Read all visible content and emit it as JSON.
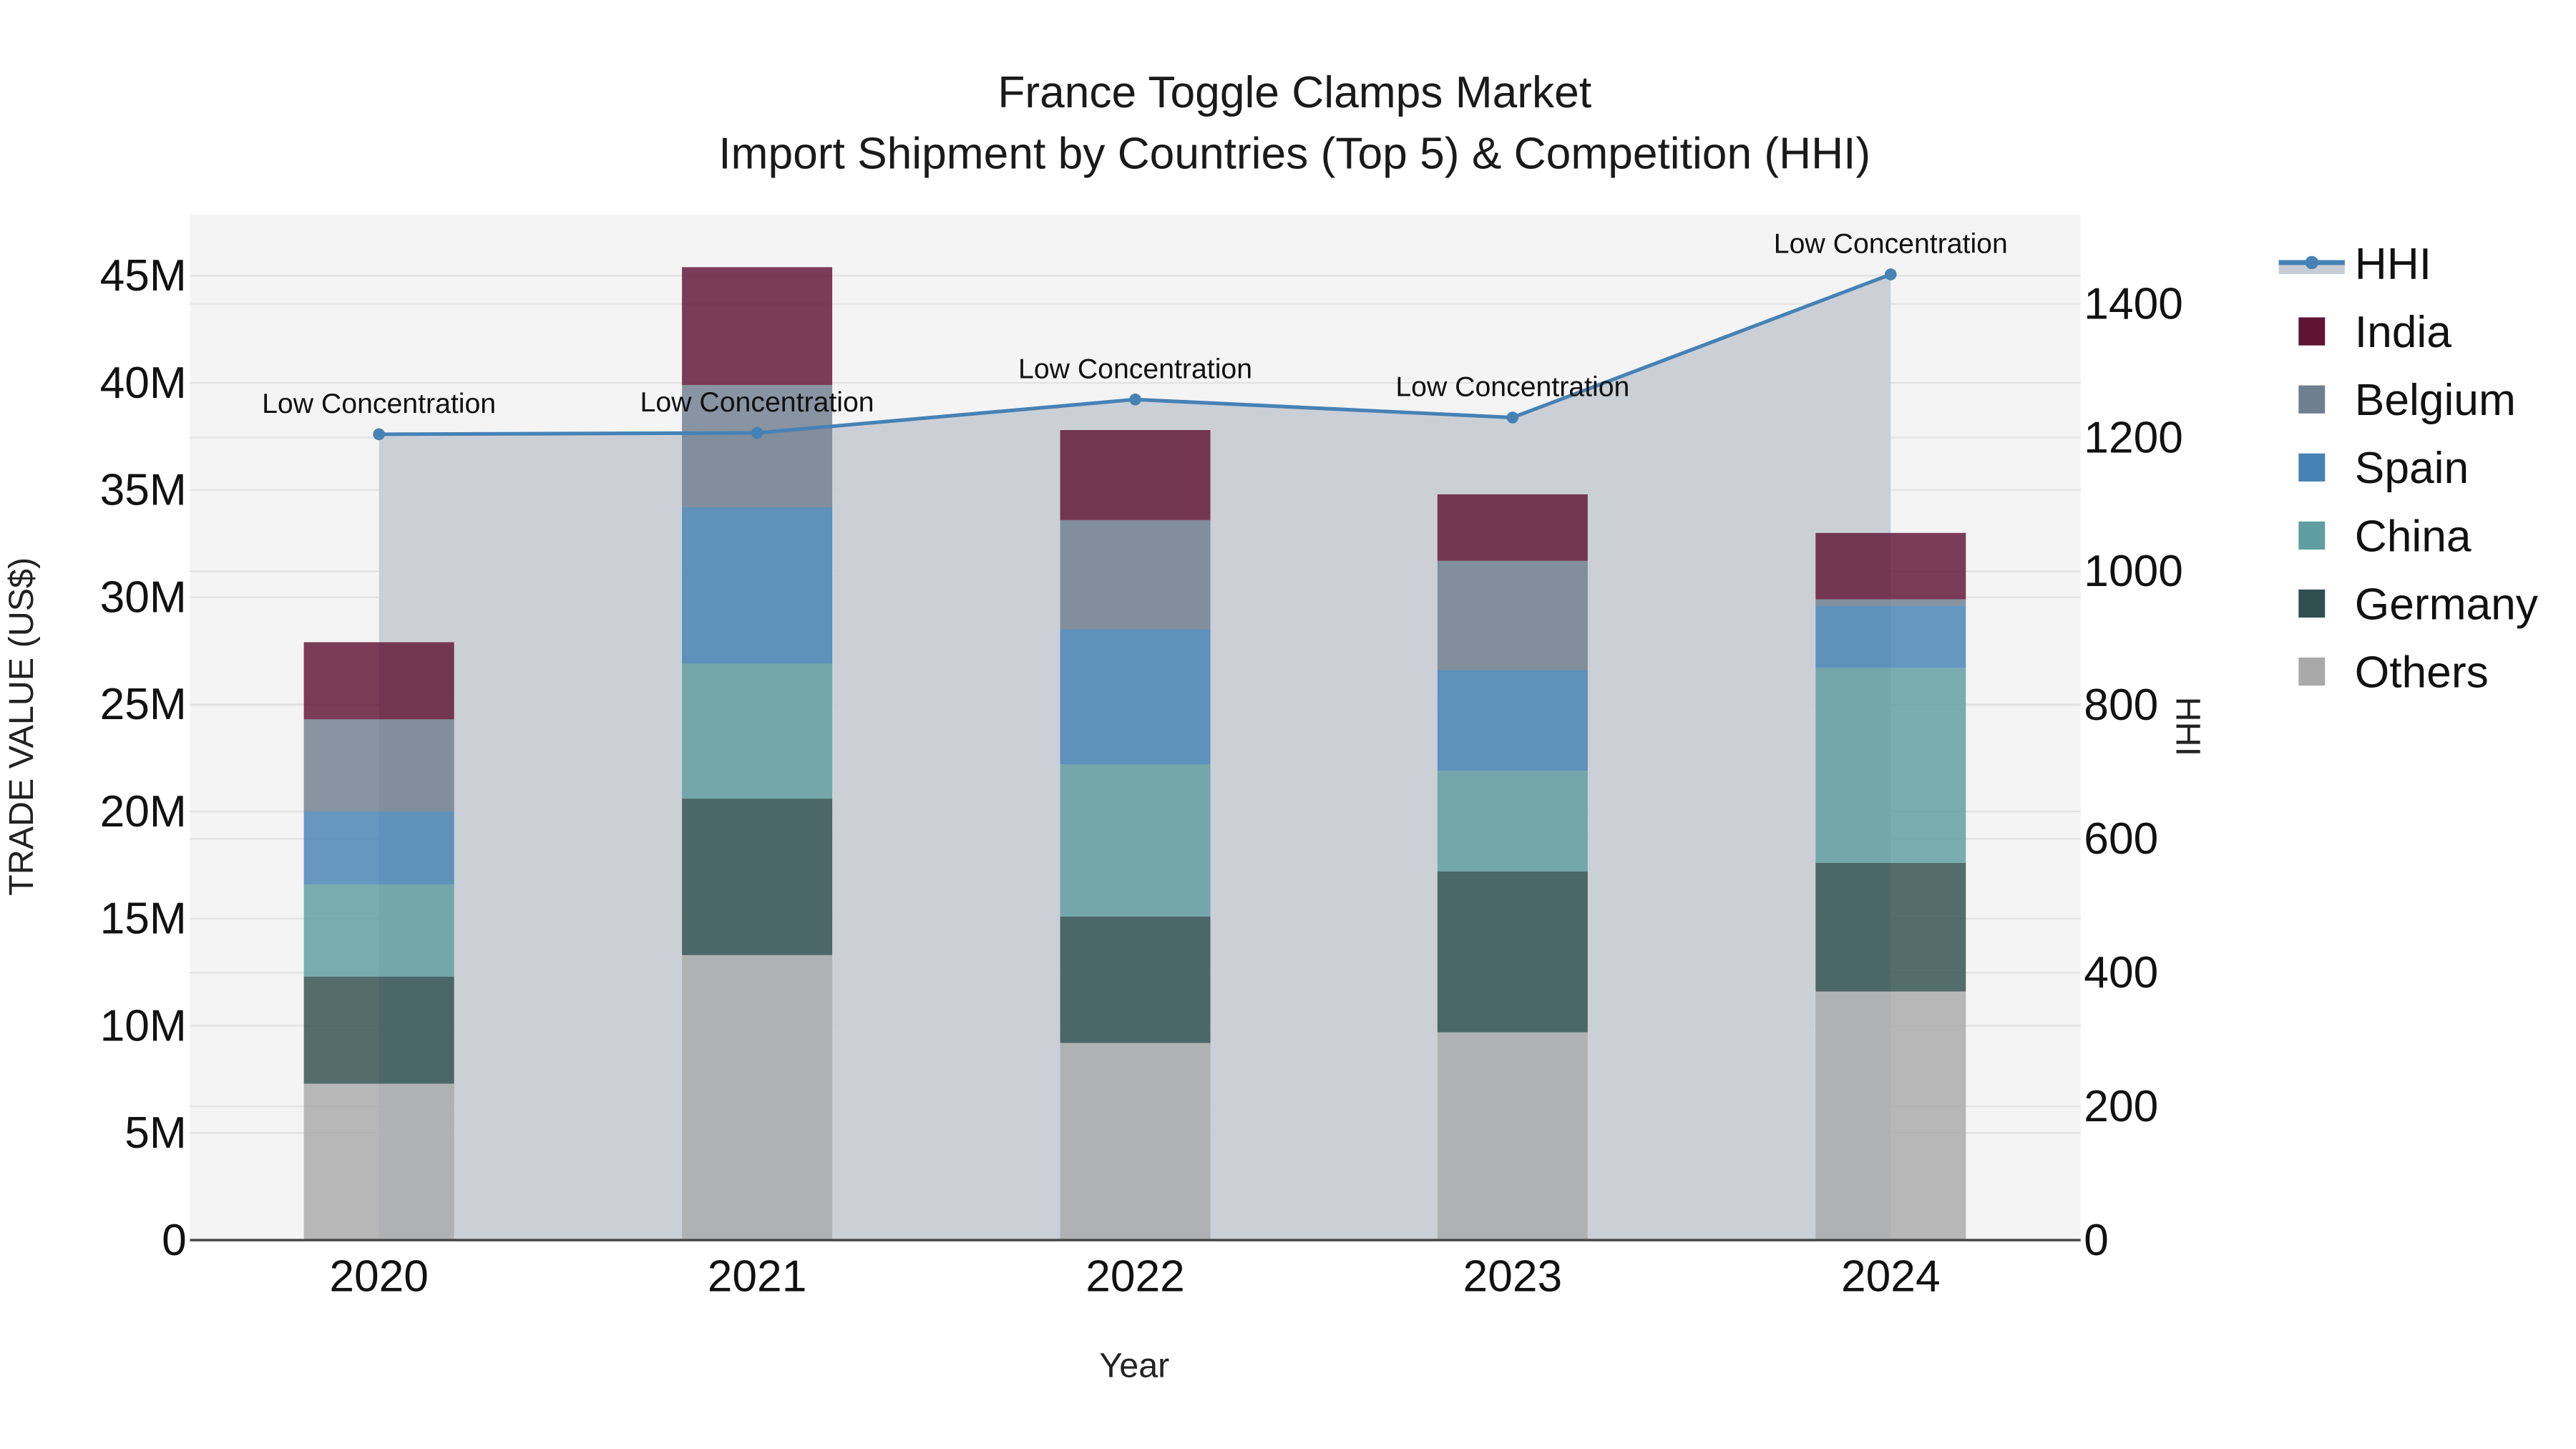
{
  "title": {
    "line1": "France Toggle Clamps Market",
    "line2": "Import Shipment by Countries (Top 5) & Competition (HHI)"
  },
  "axes": {
    "x_title": "Year",
    "y_left_title": "TRADE VALUE (US$)",
    "y_right_title": "HHI",
    "y_left_ticks": [
      "0",
      "5M",
      "10M",
      "15M",
      "20M",
      "25M",
      "30M",
      "35M",
      "40M",
      "45M"
    ],
    "y_right_ticks": [
      "0",
      "200",
      "400",
      "600",
      "800",
      "1000",
      "1200",
      "1400"
    ],
    "x_ticks": [
      "2020",
      "2021",
      "2022",
      "2023",
      "2024"
    ]
  },
  "legend": [
    {
      "label": "HHI",
      "type": "line",
      "color": "#4682b4"
    },
    {
      "label": "India",
      "type": "box",
      "color": "#5f1335"
    },
    {
      "label": "Belgium",
      "type": "box",
      "color": "#707f8f"
    },
    {
      "label": "Spain",
      "type": "box",
      "color": "#4682b4"
    },
    {
      "label": "China",
      "type": "box",
      "color": "#5f9ea0"
    },
    {
      "label": "Germany",
      "type": "box",
      "color": "#2f4f4f"
    },
    {
      "label": "Others",
      "type": "box",
      "color": "#a9a9a9"
    }
  ],
  "annotations": [
    "Low Concentration",
    "Low Concentration",
    "Low Concentration",
    "Low Concentration",
    "Low Concentration"
  ],
  "colors": {
    "plot_bg": "#f4f4f4",
    "hhi_fill": "#c8cdd5",
    "hhi_line": "#4682b4",
    "grid": "#e2e2e2"
  },
  "chart_data": {
    "type": "bar",
    "title": "France Toggle Clamps Market — Import Shipment by Countries (Top 5) & Competition (HHI)",
    "xlabel": "Year",
    "ylabel": "TRADE VALUE (US$)",
    "y2label": "HHI",
    "ylim": [
      0,
      47500000
    ],
    "y2lim": [
      0,
      1530
    ],
    "grid": true,
    "legend_position": "right",
    "categories": [
      "2020",
      "2021",
      "2022",
      "2023",
      "2024"
    ],
    "stacked": true,
    "series": [
      {
        "name": "Others",
        "color": "#a9a9a9",
        "values": [
          7300000,
          13300000,
          9200000,
          9700000,
          11600000
        ]
      },
      {
        "name": "Germany",
        "color": "#2f4f4f",
        "values": [
          5000000,
          7300000,
          5900000,
          7500000,
          6000000
        ]
      },
      {
        "name": "China",
        "color": "#5f9ea0",
        "values": [
          4300000,
          6300000,
          7100000,
          4700000,
          9100000
        ]
      },
      {
        "name": "Spain",
        "color": "#4682b4",
        "values": [
          3400000,
          7300000,
          6300000,
          4700000,
          2900000
        ]
      },
      {
        "name": "Belgium",
        "color": "#707f8f",
        "values": [
          4300000,
          5700000,
          5100000,
          5100000,
          300000
        ]
      },
      {
        "name": "India",
        "color": "#5f1335",
        "values": [
          3600000,
          5500000,
          4200000,
          3100000,
          3100000
        ]
      }
    ],
    "totals": [
      27900000,
      45400000,
      37800000,
      34800000,
      33000000
    ],
    "line_series": {
      "name": "HHI",
      "axis": "right",
      "type": "line+area",
      "color": "#4682b4",
      "values": [
        1205,
        1207,
        1257,
        1230,
        1444
      ],
      "labels": [
        "Low Concentration",
        "Low Concentration",
        "Low Concentration",
        "Low Concentration",
        "Low Concentration"
      ]
    }
  }
}
